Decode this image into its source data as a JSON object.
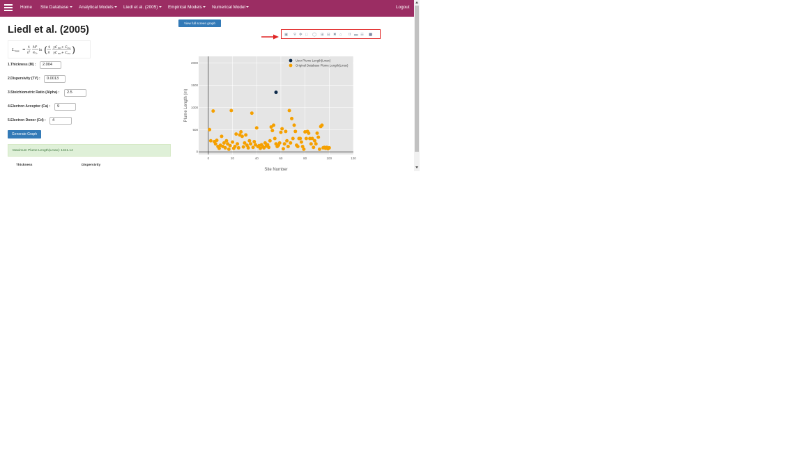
{
  "navbar": {
    "items": [
      {
        "label": "Home",
        "has_dropdown": false
      },
      {
        "label": "Site Database",
        "has_dropdown": true
      },
      {
        "label": "Analytical Models",
        "has_dropdown": true
      },
      {
        "label": "Liedl et al. (2005)",
        "has_dropdown": true
      },
      {
        "label": "Empirical Models",
        "has_dropdown": true
      },
      {
        "label": "Numerical Model",
        "has_dropdown": true
      }
    ],
    "logout": "Logout",
    "bg_color": "#9b2d63"
  },
  "page": {
    "title": "Liedl et al. (2005)"
  },
  "form": {
    "thickness": {
      "label": "1.Thickness (M) :",
      "value": "2.004"
    },
    "dispersivity": {
      "label": "2.Dispersivity (TV) :",
      "value": "0.0013"
    },
    "ratio": {
      "label": "3.Stoichiometric Ratio (Alpha) :",
      "value": "2.5"
    },
    "acceptor": {
      "label": "4.Electron Acceptor (Ca) :",
      "value": "9"
    },
    "donor": {
      "label": "5.Electron Donor (Cd) :",
      "value": "4"
    },
    "generate_label": "Generate Graph"
  },
  "result": {
    "text": "Maximum Plume Length(Lmax): 1341.14"
  },
  "table": {
    "headers": [
      "Thickness",
      "Dispersivity"
    ]
  },
  "graph": {
    "view_full_label": "View full screen graph",
    "modebar_icons": [
      "camera-icon",
      "zoom-icon",
      "pan-icon",
      "box-select-icon",
      "lasso-select-icon",
      "zoom-in-icon",
      "zoom-out-icon",
      "autoscale-icon",
      "reset-axes-icon",
      "spike-lines-icon",
      "hover-closest-icon",
      "hover-compare-icon",
      "plotly-logo-icon"
    ]
  },
  "chart_data": {
    "type": "scatter",
    "xlabel": "Site Number",
    "ylabel": "Plume Length (m)",
    "xlim": [
      -8,
      120
    ],
    "ylim": [
      -60,
      2150
    ],
    "xticks": [
      0,
      20,
      40,
      60,
      80,
      100,
      120
    ],
    "yticks": [
      0,
      500,
      1000,
      1500,
      2000
    ],
    "grid": true,
    "legend_position": "top-right",
    "series": [
      {
        "name": "User Plume Length(Lmax)",
        "color": "#0d2a4a",
        "points": [
          [
            56,
            1341
          ]
        ]
      },
      {
        "name": "Original Database Plume Length(Lmax)",
        "color": "#f5a000",
        "points": [
          [
            1,
            500
          ],
          [
            2,
            250
          ],
          [
            4,
            920
          ],
          [
            5,
            230
          ],
          [
            6,
            180
          ],
          [
            7,
            260
          ],
          [
            8,
            120
          ],
          [
            9,
            80
          ],
          [
            10,
            150
          ],
          [
            11,
            350
          ],
          [
            12,
            120
          ],
          [
            13,
            200
          ],
          [
            14,
            90
          ],
          [
            15,
            250
          ],
          [
            16,
            180
          ],
          [
            17,
            60
          ],
          [
            18,
            140
          ],
          [
            19,
            930
          ],
          [
            20,
            220
          ],
          [
            21,
            80
          ],
          [
            22,
            120
          ],
          [
            23,
            400
          ],
          [
            24,
            180
          ],
          [
            25,
            90
          ],
          [
            26,
            380
          ],
          [
            27,
            450
          ],
          [
            28,
            350
          ],
          [
            29,
            110
          ],
          [
            30,
            200
          ],
          [
            31,
            380
          ],
          [
            32,
            150
          ],
          [
            33,
            90
          ],
          [
            34,
            250
          ],
          [
            35,
            180
          ],
          [
            36,
            870
          ],
          [
            37,
            100
          ],
          [
            38,
            230
          ],
          [
            39,
            160
          ],
          [
            40,
            540
          ],
          [
            41,
            120
          ],
          [
            42,
            140
          ],
          [
            43,
            80
          ],
          [
            44,
            160
          ],
          [
            45,
            120
          ],
          [
            46,
            90
          ],
          [
            47,
            200
          ],
          [
            48,
            130
          ],
          [
            49,
            160
          ],
          [
            50,
            100
          ],
          [
            51,
            250
          ],
          [
            52,
            560
          ],
          [
            53,
            480
          ],
          [
            54,
            600
          ],
          [
            55,
            300
          ],
          [
            56,
            180
          ],
          [
            57,
            120
          ],
          [
            58,
            150
          ],
          [
            59,
            200
          ],
          [
            60,
            440
          ],
          [
            61,
            520
          ],
          [
            62,
            70
          ],
          [
            63,
            180
          ],
          [
            64,
            460
          ],
          [
            65,
            250
          ],
          [
            66,
            120
          ],
          [
            67,
            930
          ],
          [
            68,
            200
          ],
          [
            69,
            750
          ],
          [
            70,
            300
          ],
          [
            71,
            600
          ],
          [
            72,
            460
          ],
          [
            73,
            150
          ],
          [
            74,
            120
          ],
          [
            75,
            300
          ],
          [
            76,
            300
          ],
          [
            77,
            220
          ],
          [
            78,
            120
          ],
          [
            79,
            60
          ],
          [
            80,
            450
          ],
          [
            81,
            300
          ],
          [
            82,
            460
          ],
          [
            83,
            420
          ],
          [
            84,
            300
          ],
          [
            85,
            180
          ],
          [
            86,
            300
          ],
          [
            87,
            100
          ],
          [
            88,
            250
          ],
          [
            89,
            180
          ],
          [
            90,
            420
          ],
          [
            91,
            330
          ],
          [
            92,
            60
          ],
          [
            93,
            570
          ],
          [
            94,
            600
          ],
          [
            95,
            90
          ],
          [
            96,
            100
          ],
          [
            97,
            80
          ],
          [
            98,
            100
          ],
          [
            99,
            70
          ],
          [
            100,
            90
          ]
        ]
      }
    ]
  }
}
